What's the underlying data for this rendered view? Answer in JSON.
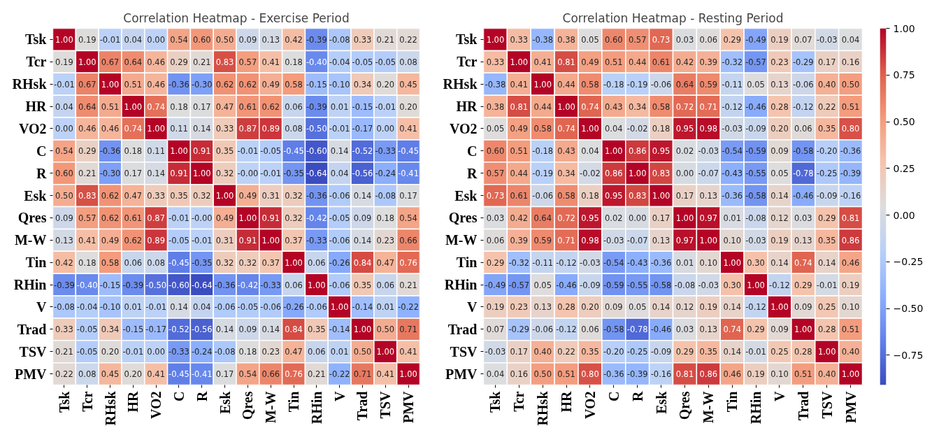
{
  "chart_data": [
    {
      "type": "heatmap",
      "title": "Correlation Heatmap - Exercise Period",
      "data_labels": true,
      "categories": [
        "Tsk",
        "Tcr",
        "RHsk",
        "HR",
        "VO2",
        "C",
        "R",
        "Esk",
        "Qres",
        "M-W",
        "Tin",
        "RHin",
        "V",
        "Trad",
        "TSV",
        "PMV"
      ],
      "y_categories": [
        "Tsk",
        "Tcr",
        "RHsk",
        "HR",
        "VO2",
        "C",
        "R",
        "Esk",
        "Qres",
        "M-W",
        "Tin",
        "RHin",
        "V",
        "Trad",
        "TSV",
        "PMV"
      ],
      "cells": [
        [
          1.0,
          0.19,
          -0.01,
          0.04,
          0.0,
          0.54,
          0.6,
          0.5,
          0.09,
          0.13,
          0.42,
          -0.39,
          -0.08,
          0.33,
          0.21,
          0.22
        ],
        [
          0.19,
          1.0,
          0.67,
          0.64,
          0.46,
          0.29,
          0.21,
          0.83,
          0.57,
          0.41,
          0.18,
          -0.4,
          -0.04,
          -0.05,
          -0.05,
          0.08
        ],
        [
          -0.01,
          0.67,
          1.0,
          0.51,
          0.46,
          -0.36,
          -0.3,
          0.62,
          0.62,
          0.49,
          0.58,
          -0.15,
          -0.1,
          0.34,
          0.2,
          0.45
        ],
        [
          0.04,
          0.64,
          0.51,
          1.0,
          0.74,
          0.18,
          0.17,
          0.47,
          0.61,
          0.62,
          0.06,
          -0.39,
          0.01,
          -0.15,
          -0.01,
          0.2
        ],
        [
          0.0,
          0.46,
          0.46,
          0.74,
          1.0,
          0.11,
          0.14,
          0.33,
          0.87,
          0.89,
          0.08,
          -0.5,
          -0.01,
          -0.17,
          0.0,
          0.41
        ],
        [
          0.54,
          0.29,
          -0.36,
          0.18,
          0.11,
          1.0,
          0.91,
          0.35,
          -0.01,
          -0.05,
          -0.45,
          -0.6,
          0.14,
          -0.52,
          -0.33,
          -0.45
        ],
        [
          0.6,
          0.21,
          -0.3,
          0.17,
          0.14,
          0.91,
          1.0,
          0.32,
          -0.0,
          -0.01,
          -0.35,
          -0.64,
          0.04,
          -0.56,
          -0.24,
          -0.41
        ],
        [
          0.5,
          0.83,
          0.62,
          0.47,
          0.33,
          0.35,
          0.32,
          1.0,
          0.49,
          0.31,
          0.32,
          -0.36,
          -0.06,
          0.14,
          -0.08,
          0.17
        ],
        [
          0.09,
          0.57,
          0.62,
          0.61,
          0.87,
          -0.01,
          -0.0,
          0.49,
          1.0,
          0.91,
          0.32,
          -0.42,
          -0.05,
          0.09,
          0.18,
          0.54
        ],
        [
          0.13,
          0.41,
          0.49,
          0.62,
          0.89,
          -0.05,
          -0.01,
          0.31,
          0.91,
          1.0,
          0.37,
          -0.33,
          -0.06,
          0.14,
          0.23,
          0.66
        ],
        [
          0.42,
          0.18,
          0.58,
          0.06,
          0.08,
          -0.45,
          -0.35,
          0.32,
          0.32,
          0.37,
          1.0,
          0.06,
          -0.26,
          0.84,
          0.47,
          0.76
        ],
        [
          -0.39,
          -0.4,
          -0.15,
          -0.39,
          -0.5,
          -0.6,
          -0.64,
          -0.36,
          -0.42,
          -0.33,
          0.06,
          1.0,
          -0.06,
          0.35,
          0.06,
          0.21
        ],
        [
          -0.08,
          -0.04,
          -0.1,
          0.01,
          -0.01,
          0.14,
          0.04,
          -0.06,
          -0.05,
          -0.06,
          -0.26,
          -0.06,
          1.0,
          -0.14,
          0.01,
          -0.22
        ],
        [
          0.33,
          -0.05,
          0.34,
          -0.15,
          -0.17,
          -0.52,
          -0.56,
          0.14,
          0.09,
          0.14,
          0.84,
          0.35,
          -0.14,
          1.0,
          0.5,
          0.71
        ],
        [
          0.21,
          -0.05,
          0.2,
          -0.01,
          0.0,
          -0.33,
          -0.24,
          -0.08,
          0.18,
          0.23,
          0.47,
          0.06,
          0.01,
          0.5,
          1.0,
          0.41
        ],
        [
          0.22,
          0.08,
          0.45,
          0.2,
          0.41,
          -0.45,
          -0.41,
          0.17,
          0.54,
          0.66,
          0.76,
          0.21,
          -0.22,
          0.71,
          0.41,
          1.0
        ]
      ],
      "cell_labels": [
        [
          "1.00",
          "0.19",
          "-0.01",
          "0.04",
          "0.00",
          "0.54",
          "0.60",
          "0.50",
          "0.09",
          "0.13",
          "0.42",
          "-0.39",
          "-0.08",
          "0.33",
          "0.21",
          "0.22"
        ],
        [
          "0.19",
          "1.00",
          "0.67",
          "0.64",
          "0.46",
          "0.29",
          "0.21",
          "0.83",
          "0.57",
          "0.41",
          "0.18",
          "-0.40",
          "-0.04",
          "-0.05",
          "-0.05",
          "0.08"
        ],
        [
          "-0.01",
          "0.67",
          "1.00",
          "0.51",
          "0.46",
          "-0.36",
          "-0.30",
          "0.62",
          "0.62",
          "0.49",
          "0.58",
          "-0.15",
          "-0.10",
          "0.34",
          "0.20",
          "0.45"
        ],
        [
          "0.04",
          "0.64",
          "0.51",
          "1.00",
          "0.74",
          "0.18",
          "0.17",
          "0.47",
          "0.61",
          "0.62",
          "0.06",
          "-0.39",
          "0.01",
          "-0.15",
          "-0.01",
          "0.20"
        ],
        [
          "0.00",
          "0.46",
          "0.46",
          "0.74",
          "1.00",
          "0.11",
          "0.14",
          "0.33",
          "0.87",
          "0.89",
          "0.08",
          "-0.50",
          "-0.01",
          "-0.17",
          "0.00",
          "0.41"
        ],
        [
          "0.54",
          "0.29",
          "-0.36",
          "0.18",
          "0.11",
          "1.00",
          "0.91",
          "0.35",
          "-0.01",
          "-0.05",
          "-0.45",
          "-0.60",
          "0.14",
          "-0.52",
          "-0.33",
          "-0.45"
        ],
        [
          "0.60",
          "0.21",
          "-0.30",
          "0.17",
          "0.14",
          "0.91",
          "1.00",
          "0.32",
          "-0.00",
          "-0.01",
          "-0.35",
          "-0.64",
          "0.04",
          "-0.56",
          "-0.24",
          "-0.41"
        ],
        [
          "0.50",
          "0.83",
          "0.62",
          "0.47",
          "0.33",
          "0.35",
          "0.32",
          "1.00",
          "0.49",
          "0.31",
          "0.32",
          "-0.36",
          "-0.06",
          "0.14",
          "-0.08",
          "0.17"
        ],
        [
          "0.09",
          "0.57",
          "0.62",
          "0.61",
          "0.87",
          "-0.01",
          "-0.00",
          "0.49",
          "1.00",
          "0.91",
          "0.32",
          "-0.42",
          "-0.05",
          "0.09",
          "0.18",
          "0.54"
        ],
        [
          "0.13",
          "0.41",
          "0.49",
          "0.62",
          "0.89",
          "-0.05",
          "-0.01",
          "0.31",
          "0.91",
          "1.00",
          "0.37",
          "-0.33",
          "-0.06",
          "0.14",
          "0.23",
          "0.66"
        ],
        [
          "0.42",
          "0.18",
          "0.58",
          "0.06",
          "0.08",
          "-0.45",
          "-0.35",
          "0.32",
          "0.32",
          "0.37",
          "1.00",
          "0.06",
          "-0.26",
          "0.84",
          "0.47",
          "0.76"
        ],
        [
          "-0.39",
          "-0.40",
          "-0.15",
          "-0.39",
          "-0.50",
          "-0.60",
          "-0.64",
          "-0.36",
          "-0.42",
          "-0.33",
          "0.06",
          "1.00",
          "-0.06",
          "0.35",
          "0.06",
          "0.21"
        ],
        [
          "-0.08",
          "-0.04",
          "-0.10",
          "0.01",
          "-0.01",
          "0.14",
          "0.04",
          "-0.06",
          "-0.05",
          "-0.06",
          "-0.26",
          "-0.06",
          "1.00",
          "-0.14",
          "0.01",
          "-0.22"
        ],
        [
          "0.33",
          "-0.05",
          "0.34",
          "-0.15",
          "-0.17",
          "-0.52",
          "-0.56",
          "0.14",
          "0.09",
          "0.14",
          "0.84",
          "0.35",
          "-0.14",
          "1.00",
          "0.50",
          "0.71"
        ],
        [
          "0.21",
          "-0.05",
          "0.20",
          "-0.01",
          "0.00",
          "-0.33",
          "-0.24",
          "-0.08",
          "0.18",
          "0.23",
          "0.47",
          "0.06",
          "0.01",
          "0.50",
          "1.00",
          "0.41"
        ],
        [
          "0.22",
          "0.08",
          "0.45",
          "0.20",
          "0.41",
          "-0.45",
          "-0.41",
          "0.17",
          "0.54",
          "0.66",
          "0.76",
          "0.21",
          "-0.22",
          "0.71",
          "0.41",
          "1.00"
        ]
      ]
    },
    {
      "type": "heatmap",
      "title": "Correlation Heatmap - Resting Period",
      "data_labels": true,
      "categories": [
        "Tsk",
        "Tcr",
        "RHsk",
        "HR",
        "VO2",
        "C",
        "R",
        "Esk",
        "Qres",
        "M-W",
        "Tin",
        "RHin",
        "V",
        "Trad",
        "TSV",
        "PMV"
      ],
      "y_categories": [
        "Tsk",
        "Tcr",
        "RHsk",
        "HR",
        "VO2",
        "C",
        "R",
        "Esk",
        "Qres",
        "M-W",
        "Tin",
        "RHin",
        "V",
        "Trad",
        "TSV",
        "PMV"
      ],
      "cells": [
        [
          1.0,
          0.33,
          -0.38,
          0.38,
          0.05,
          0.6,
          0.57,
          0.73,
          0.03,
          0.06,
          0.29,
          -0.49,
          0.19,
          0.07,
          -0.03,
          0.04
        ],
        [
          0.33,
          1.0,
          0.41,
          0.81,
          0.49,
          0.51,
          0.44,
          0.61,
          0.42,
          0.39,
          -0.32,
          -0.57,
          0.23,
          -0.29,
          0.17,
          0.16
        ],
        [
          -0.38,
          0.41,
          1.0,
          0.44,
          0.58,
          -0.18,
          -0.19,
          -0.06,
          0.64,
          0.59,
          -0.11,
          0.05,
          0.13,
          -0.06,
          0.4,
          0.5
        ],
        [
          0.38,
          0.81,
          0.44,
          1.0,
          0.74,
          0.43,
          0.34,
          0.58,
          0.72,
          0.71,
          -0.12,
          -0.46,
          0.28,
          -0.12,
          0.22,
          0.51
        ],
        [
          0.05,
          0.49,
          0.58,
          0.74,
          1.0,
          0.04,
          -0.02,
          0.18,
          0.95,
          0.98,
          -0.03,
          -0.09,
          0.2,
          0.06,
          0.35,
          0.8
        ],
        [
          0.6,
          0.51,
          -0.18,
          0.43,
          0.04,
          1.0,
          0.86,
          0.95,
          0.02,
          -0.03,
          -0.54,
          -0.59,
          0.09,
          -0.58,
          -0.2,
          -0.36
        ],
        [
          0.57,
          0.44,
          -0.19,
          0.34,
          -0.02,
          0.86,
          1.0,
          0.83,
          0.0,
          -0.07,
          -0.43,
          -0.55,
          0.05,
          -0.78,
          -0.25,
          -0.39
        ],
        [
          0.73,
          0.61,
          -0.06,
          0.58,
          0.18,
          0.95,
          0.83,
          1.0,
          0.17,
          0.13,
          -0.36,
          -0.58,
          0.14,
          -0.46,
          -0.09,
          -0.16
        ],
        [
          0.03,
          0.42,
          0.64,
          0.72,
          0.95,
          0.02,
          0.0,
          0.17,
          1.0,
          0.97,
          0.01,
          -0.08,
          0.12,
          0.03,
          0.29,
          0.81
        ],
        [
          0.06,
          0.39,
          0.59,
          0.71,
          0.98,
          -0.03,
          -0.07,
          0.13,
          0.97,
          1.0,
          0.1,
          -0.03,
          0.19,
          0.13,
          0.35,
          0.86
        ],
        [
          0.29,
          -0.32,
          -0.11,
          -0.12,
          -0.03,
          -0.54,
          -0.43,
          -0.36,
          0.01,
          0.1,
          1.0,
          0.3,
          0.14,
          0.74,
          0.14,
          0.46
        ],
        [
          -0.49,
          -0.57,
          0.05,
          -0.46,
          -0.09,
          -0.59,
          -0.55,
          -0.58,
          -0.08,
          -0.03,
          0.3,
          1.0,
          -0.12,
          0.29,
          -0.01,
          0.19
        ],
        [
          0.19,
          0.23,
          0.13,
          0.28,
          0.2,
          0.09,
          0.05,
          0.14,
          0.12,
          0.19,
          0.14,
          -0.12,
          1.0,
          0.09,
          0.25,
          0.1
        ],
        [
          0.07,
          -0.29,
          -0.06,
          -0.12,
          0.06,
          -0.58,
          -0.78,
          -0.46,
          0.03,
          0.13,
          0.74,
          0.29,
          0.09,
          1.0,
          0.28,
          0.51
        ],
        [
          -0.03,
          0.17,
          0.4,
          0.22,
          0.35,
          -0.2,
          -0.25,
          -0.09,
          0.29,
          0.35,
          0.14,
          -0.01,
          0.25,
          0.28,
          1.0,
          0.4
        ],
        [
          0.04,
          0.16,
          0.5,
          0.51,
          0.8,
          -0.36,
          -0.39,
          -0.16,
          0.81,
          0.86,
          0.46,
          0.19,
          0.1,
          0.51,
          0.4,
          1.0
        ]
      ],
      "cell_labels": [
        [
          "1.00",
          "0.33",
          "-0.38",
          "0.38",
          "0.05",
          "0.60",
          "0.57",
          "0.73",
          "0.03",
          "0.06",
          "0.29",
          "-0.49",
          "0.19",
          "0.07",
          "-0.03",
          "0.04"
        ],
        [
          "0.33",
          "1.00",
          "0.41",
          "0.81",
          "0.49",
          "0.51",
          "0.44",
          "0.61",
          "0.42",
          "0.39",
          "-0.32",
          "-0.57",
          "0.23",
          "-0.29",
          "0.17",
          "0.16"
        ],
        [
          "-0.38",
          "0.41",
          "1.00",
          "0.44",
          "0.58",
          "-0.18",
          "-0.19",
          "-0.06",
          "0.64",
          "0.59",
          "-0.11",
          "0.05",
          "0.13",
          "-0.06",
          "0.40",
          "0.50"
        ],
        [
          "0.38",
          "0.81",
          "0.44",
          "1.00",
          "0.74",
          "0.43",
          "0.34",
          "0.58",
          "0.72",
          "0.71",
          "-0.12",
          "-0.46",
          "0.28",
          "-0.12",
          "0.22",
          "0.51"
        ],
        [
          "0.05",
          "0.49",
          "0.58",
          "0.74",
          "1.00",
          "0.04",
          "-0.02",
          "0.18",
          "0.95",
          "0.98",
          "-0.03",
          "-0.09",
          "0.20",
          "0.06",
          "0.35",
          "0.80"
        ],
        [
          "0.60",
          "0.51",
          "-0.18",
          "0.43",
          "0.04",
          "1.00",
          "0.86",
          "0.95",
          "0.02",
          "-0.03",
          "-0.54",
          "-0.59",
          "0.09",
          "-0.58",
          "-0.20",
          "-0.36"
        ],
        [
          "0.57",
          "0.44",
          "-0.19",
          "0.34",
          "-0.02",
          "0.86",
          "1.00",
          "0.83",
          "0.00",
          "-0.07",
          "-0.43",
          "-0.55",
          "0.05",
          "-0.78",
          "-0.25",
          "-0.39"
        ],
        [
          "0.73",
          "0.61",
          "-0.06",
          "0.58",
          "0.18",
          "0.95",
          "0.83",
          "1.00",
          "0.17",
          "0.13",
          "-0.36",
          "-0.58",
          "0.14",
          "-0.46",
          "-0.09",
          "-0.16"
        ],
        [
          "0.03",
          "0.42",
          "0.64",
          "0.72",
          "0.95",
          "0.02",
          "0.00",
          "0.17",
          "1.00",
          "0.97",
          "0.01",
          "-0.08",
          "0.12",
          "0.03",
          "0.29",
          "0.81"
        ],
        [
          "0.06",
          "0.39",
          "0.59",
          "0.71",
          "0.98",
          "-0.03",
          "-0.07",
          "0.13",
          "0.97",
          "1.00",
          "0.10",
          "-0.03",
          "0.19",
          "0.13",
          "0.35",
          "0.86"
        ],
        [
          "0.29",
          "-0.32",
          "-0.11",
          "-0.12",
          "-0.03",
          "-0.54",
          "-0.43",
          "-0.36",
          "0.01",
          "0.10",
          "1.00",
          "0.30",
          "0.14",
          "0.74",
          "0.14",
          "0.46"
        ],
        [
          "-0.49",
          "-0.57",
          "0.05",
          "-0.46",
          "-0.09",
          "-0.59",
          "-0.55",
          "-0.58",
          "-0.08",
          "-0.03",
          "0.30",
          "1.00",
          "-0.12",
          "0.29",
          "-0.01",
          "0.19"
        ],
        [
          "0.19",
          "0.23",
          "0.13",
          "0.28",
          "0.20",
          "0.09",
          "0.05",
          "0.14",
          "0.12",
          "0.19",
          "0.14",
          "-0.12",
          "1.00",
          "0.09",
          "0.25",
          "0.10"
        ],
        [
          "0.07",
          "-0.29",
          "-0.06",
          "-0.12",
          "0.06",
          "-0.58",
          "-0.78",
          "-0.46",
          "0.03",
          "0.13",
          "0.74",
          "0.29",
          "0.09",
          "1.00",
          "0.28",
          "0.51"
        ],
        [
          "-0.03",
          "0.17",
          "0.40",
          "0.22",
          "0.35",
          "-0.20",
          "-0.25",
          "-0.09",
          "0.29",
          "0.35",
          "0.14",
          "-0.01",
          "0.25",
          "0.28",
          "1.00",
          "0.40"
        ],
        [
          "0.04",
          "0.16",
          "0.50",
          "0.51",
          "0.80",
          "-0.36",
          "-0.39",
          "-0.16",
          "0.81",
          "0.86",
          "0.46",
          "0.19",
          "0.10",
          "0.51",
          "0.40",
          "1.00"
        ]
      ],
      "clim": [
        -0.91,
        1.0
      ],
      "cticks": [
        {
          "value": 1.0,
          "label": "1.00"
        },
        {
          "value": 0.75,
          "label": "0.75"
        },
        {
          "value": 0.5,
          "label": "0.50"
        },
        {
          "value": 0.25,
          "label": "0.25"
        },
        {
          "value": 0.0,
          "label": "0.00"
        },
        {
          "value": -0.25,
          "label": "−0.25"
        },
        {
          "value": -0.5,
          "label": "−0.50"
        },
        {
          "value": -0.75,
          "label": "−0.75"
        }
      ]
    }
  ]
}
